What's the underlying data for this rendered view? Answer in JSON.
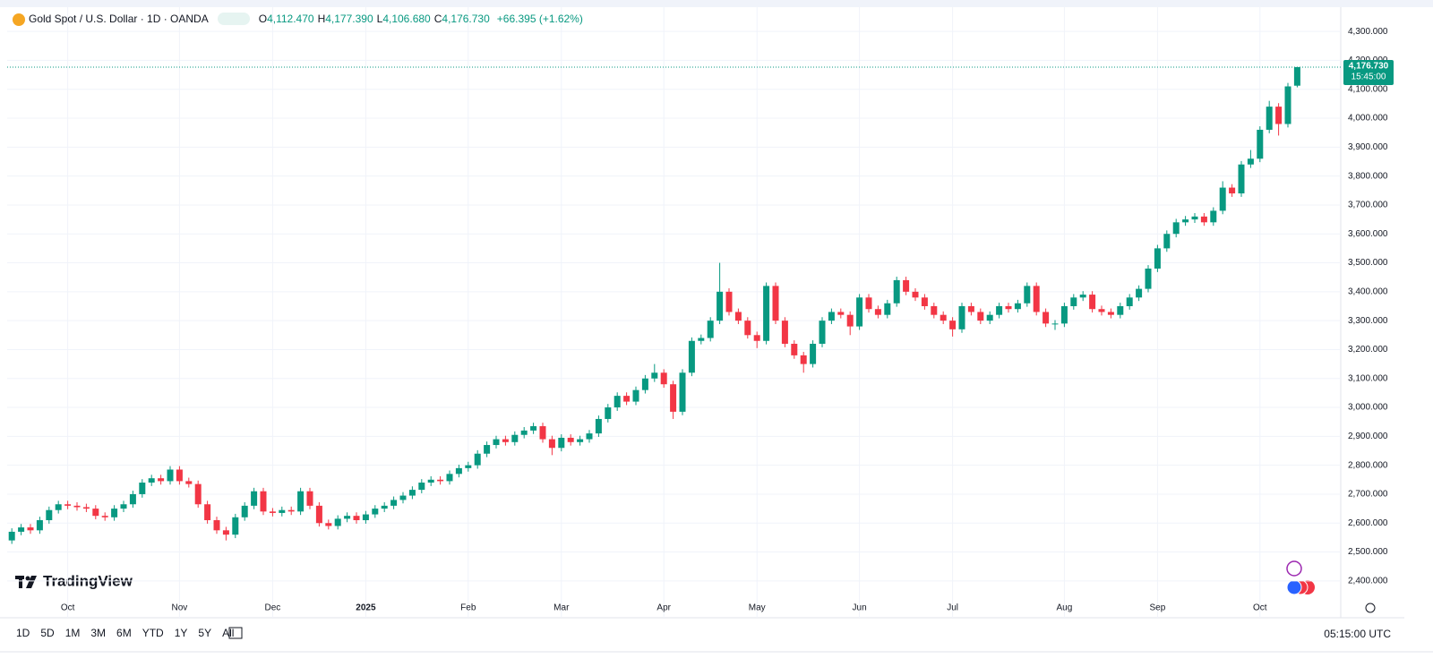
{
  "header": {
    "symbol": "Gold Spot / U.S. Dollar · 1D · OANDA",
    "ohlc": [
      {
        "key": "O",
        "value": "4,112.470"
      },
      {
        "key": "H",
        "value": "4,177.390"
      },
      {
        "key": "L",
        "value": "4,106.680"
      },
      {
        "key": "C",
        "value": "4,176.730"
      }
    ],
    "change": "+66.395 (+1.62%)"
  },
  "chart_data": {
    "type": "candlestick",
    "categories": [
      null,
      null,
      null,
      null,
      null,
      null,
      "Oct",
      null,
      null,
      null,
      null,
      null,
      null,
      null,
      null,
      null,
      null,
      null,
      "Nov",
      null,
      null,
      null,
      null,
      null,
      null,
      null,
      null,
      null,
      "Dec",
      null,
      null,
      null,
      null,
      null,
      null,
      null,
      null,
      null,
      "2025",
      null,
      null,
      null,
      null,
      null,
      null,
      null,
      null,
      null,
      null,
      "Feb",
      null,
      null,
      null,
      null,
      null,
      null,
      null,
      null,
      null,
      "Mar",
      null,
      null,
      null,
      null,
      null,
      null,
      null,
      null,
      null,
      null,
      "Apr",
      null,
      null,
      null,
      null,
      null,
      null,
      null,
      null,
      null,
      "May",
      null,
      null,
      null,
      null,
      null,
      null,
      null,
      null,
      null,
      null,
      "Jun",
      null,
      null,
      null,
      null,
      null,
      null,
      null,
      null,
      null,
      "Jul",
      null,
      null,
      null,
      null,
      null,
      null,
      null,
      null,
      null,
      null,
      null,
      "Aug",
      null,
      null,
      null,
      null,
      null,
      null,
      null,
      null,
      null,
      "Sep",
      null,
      null,
      null,
      null,
      null,
      null,
      null,
      null,
      null,
      null,
      "Oct",
      null,
      null,
      null,
      null
    ],
    "open": [
      2540,
      2570,
      2585,
      2575,
      2610,
      2645,
      2665,
      2660,
      2655,
      2650,
      2625,
      2620,
      2650,
      2665,
      2700,
      2740,
      2755,
      2745,
      2785,
      2745,
      2735,
      2665,
      2610,
      2575,
      2560,
      2620,
      2660,
      2710,
      2640,
      2635,
      2645,
      2640,
      2710,
      2660,
      2600,
      2590,
      2615,
      2625,
      2610,
      2630,
      2650,
      2660,
      2680,
      2695,
      2715,
      2740,
      2750,
      2745,
      2770,
      2790,
      2800,
      2840,
      2870,
      2890,
      2880,
      2905,
      2920,
      2935,
      2890,
      2860,
      2895,
      2880,
      2890,
      2910,
      2960,
      3000,
      3040,
      3020,
      3060,
      3100,
      3120,
      3080,
      2985,
      3120,
      3230,
      3240,
      3300,
      3400,
      3330,
      3300,
      3250,
      3230,
      3420,
      3300,
      3220,
      3180,
      3150,
      3220,
      3300,
      3330,
      3320,
      3280,
      3380,
      3340,
      3320,
      3360,
      3440,
      3400,
      3380,
      3350,
      3320,
      3300,
      3270,
      3350,
      3330,
      3300,
      3320,
      3350,
      3340,
      3360,
      3420,
      3330,
      3290,
      3290,
      3350,
      3380,
      3390,
      3340,
      3330,
      3320,
      3350,
      3380,
      3410,
      3480,
      3550,
      3600,
      3640,
      3650,
      3660,
      3640,
      3680,
      3760,
      3740,
      3840,
      3860,
      3960,
      4040,
      3980,
      4112.47
    ],
    "high": [
      2582,
      2597,
      2597,
      2622,
      2657,
      2677,
      2677,
      2672,
      2667,
      2662,
      2637,
      2662,
      2677,
      2712,
      2752,
      2767,
      2767,
      2797,
      2797,
      2757,
      2747,
      2677,
      2622,
      2587,
      2632,
      2672,
      2722,
      2722,
      2652,
      2657,
      2657,
      2722,
      2722,
      2672,
      2612,
      2627,
      2637,
      2637,
      2642,
      2662,
      2672,
      2692,
      2707,
      2727,
      2752,
      2762,
      2762,
      2782,
      2802,
      2812,
      2852,
      2882,
      2902,
      2902,
      2917,
      2932,
      2947,
      2947,
      2902,
      2907,
      2907,
      2902,
      2922,
      2972,
      3012,
      3052,
      3052,
      3072,
      3112,
      3150,
      3132,
      3092,
      3132,
      3242,
      3252,
      3312,
      3500,
      3412,
      3342,
      3312,
      3262,
      3432,
      3432,
      3312,
      3232,
      3192,
      3232,
      3312,
      3342,
      3342,
      3332,
      3392,
      3392,
      3352,
      3372,
      3452,
      3452,
      3412,
      3392,
      3362,
      3332,
      3312,
      3362,
      3362,
      3342,
      3332,
      3362,
      3362,
      3372,
      3432,
      3432,
      3342,
      3302,
      3362,
      3392,
      3402,
      3402,
      3352,
      3342,
      3362,
      3392,
      3422,
      3492,
      3562,
      3612,
      3652,
      3662,
      3672,
      3672,
      3692,
      3782,
      3772,
      3852,
      3890,
      3972,
      4060,
      4052,
      4122,
      4177.39
    ],
    "low": [
      2528,
      2558,
      2563,
      2563,
      2598,
      2633,
      2648,
      2643,
      2638,
      2613,
      2608,
      2608,
      2638,
      2653,
      2688,
      2728,
      2733,
      2733,
      2733,
      2723,
      2653,
      2598,
      2563,
      2540,
      2548,
      2608,
      2648,
      2628,
      2623,
      2623,
      2628,
      2628,
      2648,
      2588,
      2578,
      2578,
      2603,
      2598,
      2598,
      2618,
      2638,
      2648,
      2668,
      2683,
      2703,
      2728,
      2733,
      2733,
      2758,
      2778,
      2788,
      2828,
      2858,
      2868,
      2868,
      2893,
      2908,
      2878,
      2835,
      2848,
      2868,
      2868,
      2878,
      2898,
      2948,
      2988,
      3008,
      3008,
      3048,
      3088,
      3068,
      2960,
      2973,
      3108,
      3218,
      3228,
      3288,
      3318,
      3288,
      3238,
      3205,
      3218,
      3288,
      3208,
      3168,
      3120,
      3138,
      3208,
      3288,
      3308,
      3250,
      3268,
      3328,
      3308,
      3308,
      3348,
      3388,
      3368,
      3338,
      3308,
      3288,
      3245,
      3258,
      3318,
      3288,
      3288,
      3308,
      3328,
      3328,
      3348,
      3318,
      3278,
      3268,
      3278,
      3338,
      3368,
      3328,
      3318,
      3308,
      3308,
      3338,
      3368,
      3398,
      3468,
      3538,
      3588,
      3628,
      3638,
      3628,
      3628,
      3668,
      3728,
      3728,
      3828,
      3848,
      3948,
      3940,
      3968,
      4106.68
    ],
    "close": [
      2570,
      2585,
      2575,
      2610,
      2645,
      2665,
      2660,
      2655,
      2650,
      2625,
      2620,
      2650,
      2665,
      2700,
      2740,
      2755,
      2745,
      2785,
      2745,
      2735,
      2665,
      2610,
      2575,
      2560,
      2620,
      2660,
      2710,
      2640,
      2635,
      2645,
      2640,
      2710,
      2660,
      2600,
      2590,
      2615,
      2625,
      2610,
      2630,
      2650,
      2660,
      2680,
      2695,
      2715,
      2740,
      2750,
      2745,
      2770,
      2790,
      2800,
      2840,
      2870,
      2890,
      2880,
      2905,
      2920,
      2935,
      2890,
      2860,
      2895,
      2880,
      2890,
      2910,
      2960,
      3000,
      3040,
      3020,
      3060,
      3100,
      3120,
      3080,
      2985,
      3120,
      3230,
      3240,
      3300,
      3400,
      3330,
      3300,
      3250,
      3230,
      3420,
      3300,
      3220,
      3180,
      3150,
      3220,
      3300,
      3330,
      3320,
      3280,
      3380,
      3340,
      3320,
      3360,
      3440,
      3400,
      3380,
      3350,
      3320,
      3300,
      3270,
      3350,
      3330,
      3300,
      3320,
      3350,
      3340,
      3360,
      3420,
      3330,
      3290,
      3290,
      3350,
      3380,
      3390,
      3340,
      3330,
      3320,
      3350,
      3380,
      3410,
      3480,
      3550,
      3600,
      3640,
      3650,
      3660,
      3640,
      3680,
      3760,
      3740,
      3840,
      3860,
      3960,
      4040,
      3980,
      4110,
      4176.73
    ],
    "up_color": "#089981",
    "down_color": "#f23645",
    "ylim": [
      2350,
      4384
    ],
    "yticks": [
      {
        "value": 2400,
        "label": "2,400.000"
      },
      {
        "value": 2500,
        "label": "2,500.000"
      },
      {
        "value": 2600,
        "label": "2,600.000"
      },
      {
        "value": 2700,
        "label": "2,700.000"
      },
      {
        "value": 2800,
        "label": "2,800.000"
      },
      {
        "value": 2900,
        "label": "2,900.000"
      },
      {
        "value": 3000,
        "label": "3,000.000"
      },
      {
        "value": 3100,
        "label": "3,100.000"
      },
      {
        "value": 3200,
        "label": "3,200.000"
      },
      {
        "value": 3300,
        "label": "3,300.000"
      },
      {
        "value": 3400,
        "label": "3,400.000"
      },
      {
        "value": 3500,
        "label": "3,500.000"
      },
      {
        "value": 3600,
        "label": "3,600.000"
      },
      {
        "value": 3700,
        "label": "3,700.000"
      },
      {
        "value": 3800,
        "label": "3,800.000"
      },
      {
        "value": 3900,
        "label": "3,900.000"
      },
      {
        "value": 4000,
        "label": "4,000.000"
      },
      {
        "value": 4100,
        "label": "4,100.000"
      },
      {
        "value": 4200,
        "label": "4,200.000"
      },
      {
        "value": 4300,
        "label": "4,300.000"
      }
    ],
    "grid": true,
    "last_price": {
      "label": "4,176.730",
      "time": "15:45:00"
    }
  },
  "branding": "TradingView",
  "toolbar": {
    "ranges": [
      "1D",
      "5D",
      "1M",
      "3M",
      "6M",
      "YTD",
      "1Y",
      "5Y",
      "All"
    ],
    "clock": "05:15:00 UTC"
  }
}
